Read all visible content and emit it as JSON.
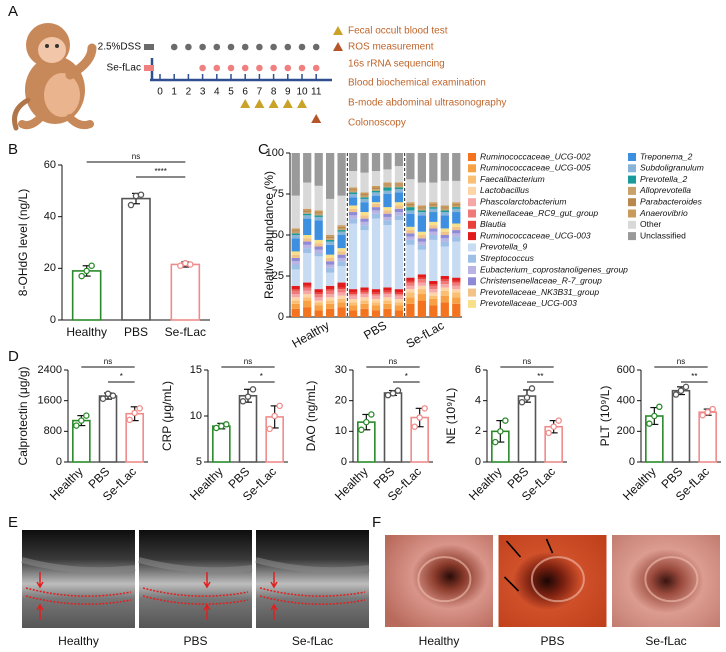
{
  "panel_labels": [
    "A",
    "B",
    "C",
    "D",
    "E",
    "F"
  ],
  "timeline": {
    "days": [
      0,
      1,
      2,
      3,
      4,
      5,
      6,
      7,
      8,
      9,
      10,
      11
    ],
    "groups": [
      {
        "name": "2.5%DSS",
        "color": "#6b6b6b",
        "days": [
          1,
          2,
          3,
          4,
          5,
          6,
          7,
          8,
          9,
          10,
          11
        ]
      },
      {
        "name": "Se-fLac",
        "color": "#f08080",
        "days": [
          3,
          4,
          5,
          6,
          7,
          8,
          9,
          10,
          11
        ]
      }
    ],
    "events": [
      {
        "label": "Fecal occult blood test",
        "color": "#c9a227",
        "days": [
          6,
          7,
          8,
          9,
          10
        ]
      },
      {
        "label": "ROS measurement",
        "color": "#b5562a",
        "days": [
          11
        ]
      },
      {
        "label": "16s rRNA sequencing"
      },
      {
        "label": "Blood biochemical examination"
      },
      {
        "label": "B-mode abdominal ultrasonography"
      },
      {
        "label": "Colonoscopy"
      }
    ]
  },
  "chart_data": [
    {
      "type": "bar",
      "ylabel": "8-OHdG level (ng/L)",
      "categories": [
        "Healthy",
        "PBS",
        "Se-fLac"
      ],
      "values": [
        19,
        47,
        21.5
      ],
      "errors": [
        2,
        2,
        1
      ],
      "points": [
        [
          17,
          19,
          21
        ],
        [
          44.5,
          48,
          48.5
        ],
        [
          21,
          22,
          21.5
        ]
      ],
      "colors": [
        "#2a8a2a",
        "#555555",
        "#f08b8b"
      ],
      "ylim": [
        0,
        60
      ],
      "yticks": [
        0,
        20,
        40,
        60
      ],
      "comparisons": [
        {
          "label": "ns",
          "from": 0,
          "to": 2
        },
        {
          "label": "****",
          "from": 1,
          "to": 2
        }
      ]
    },
    {
      "type": "stacked_bar",
      "ylabel": "Relative abundance (%)",
      "categories": [
        null,
        null,
        "Healthy",
        null,
        null,
        null,
        null,
        "PBS",
        null,
        null,
        null,
        null,
        "Se-fLac",
        null,
        null
      ],
      "ylim": [
        0,
        100
      ],
      "yticks": [
        0,
        25,
        50,
        75,
        100
      ],
      "series": [
        {
          "name": "Ruminococcaceae_UCG-002",
          "color": "#f4731f",
          "values": [
            5,
            6,
            4,
            5,
            6,
            4,
            5,
            4,
            5,
            4,
            8,
            10,
            7,
            9,
            8
          ]
        },
        {
          "name": "Ruminococcaceae_UCG-005",
          "color": "#f7a044",
          "values": [
            3,
            4,
            3,
            3,
            3,
            3,
            3,
            3,
            3,
            3,
            4,
            4,
            4,
            4,
            4
          ]
        },
        {
          "name": "Faecalibacterium",
          "color": "#fbbf74",
          "values": [
            2,
            2,
            2,
            2,
            2,
            2,
            2,
            2,
            2,
            2,
            3,
            3,
            2,
            3,
            3
          ]
        },
        {
          "name": "Lactobacillus",
          "color": "#fdd5a6",
          "values": [
            2,
            2,
            1,
            2,
            2,
            2,
            2,
            2,
            2,
            2,
            2,
            2,
            2,
            2,
            2
          ]
        },
        {
          "name": "Phascolarctobacterium",
          "color": "#f6a8a8",
          "values": [
            2,
            2,
            2,
            2,
            2,
            2,
            2,
            2,
            2,
            2,
            2,
            2,
            2,
            2,
            2
          ]
        },
        {
          "name": "Rikenellaceae_RC9_gut_group",
          "color": "#f07a7a",
          "values": [
            2,
            2,
            2,
            2,
            2,
            1,
            1,
            1,
            1,
            1,
            2,
            2,
            2,
            2,
            2
          ]
        },
        {
          "name": "Blautia",
          "color": "#e8413b",
          "values": [
            1,
            1,
            1,
            1,
            1,
            1,
            1,
            1,
            1,
            1,
            1,
            1,
            1,
            1,
            1
          ]
        },
        {
          "name": "Ruminococcaceae_UCG-003",
          "color": "#e31a1c",
          "values": [
            2,
            2,
            2,
            2,
            3,
            2,
            2,
            2,
            2,
            2,
            2,
            2,
            2,
            2,
            2
          ]
        },
        {
          "name": "Prevotella_9",
          "color": "#c7dcf2",
          "values": [
            10,
            18,
            20,
            8,
            10,
            40,
            35,
            43,
            38,
            42,
            20,
            15,
            25,
            18,
            22
          ]
        },
        {
          "name": "Streptococcus",
          "color": "#9ebfe6",
          "values": [
            3,
            3,
            2,
            3,
            3,
            3,
            3,
            3,
            3,
            3,
            3,
            3,
            3,
            3,
            3
          ]
        },
        {
          "name": "Eubacterium_coprostanoligenes_group",
          "color": "#b9b4e3",
          "values": [
            2,
            2,
            2,
            2,
            2,
            2,
            2,
            2,
            2,
            2,
            2,
            2,
            2,
            2,
            2
          ]
        },
        {
          "name": "Christensenellaceae_R-7_group",
          "color": "#8f8ad6",
          "values": [
            2,
            2,
            2,
            2,
            2,
            2,
            2,
            2,
            2,
            2,
            2,
            2,
            2,
            2,
            2
          ]
        },
        {
          "name": "Prevotellaceae_NK3B31_group",
          "color": "#f2c28b",
          "values": [
            2,
            2,
            2,
            2,
            2,
            2,
            2,
            2,
            2,
            2,
            2,
            2,
            2,
            2,
            2
          ]
        },
        {
          "name": "Prevotellaceae_UCG-003",
          "color": "#f7e08a",
          "values": [
            2,
            2,
            2,
            2,
            2,
            2,
            2,
            1,
            2,
            2,
            2,
            2,
            2,
            2,
            2
          ]
        },
        {
          "name": "Treponema_2",
          "color": "#3d8fe0",
          "values": [
            8,
            10,
            12,
            6,
            8,
            5,
            6,
            4,
            8,
            6,
            8,
            10,
            6,
            8,
            7
          ]
        },
        {
          "name": "Subdoligranulum",
          "color": "#88b4d8",
          "values": [
            2,
            2,
            2,
            2,
            2,
            2,
            2,
            2,
            2,
            2,
            2,
            2,
            2,
            2,
            2
          ]
        },
        {
          "name": "Prevotella_2",
          "color": "#1a9a9a",
          "values": [
            1,
            1,
            1,
            1,
            1,
            1,
            1,
            1,
            2,
            1,
            2,
            1,
            1,
            1,
            1
          ]
        },
        {
          "name": "Alloprevotella",
          "color": "#c8a26a",
          "values": [
            1,
            1,
            1,
            1,
            1,
            1,
            1,
            1,
            1,
            1,
            1,
            1,
            1,
            1,
            1
          ]
        },
        {
          "name": "Parabacteroides",
          "color": "#b8884e",
          "values": [
            1,
            1,
            1,
            1,
            1,
            1,
            1,
            1,
            1,
            1,
            1,
            1,
            1,
            1,
            1
          ]
        },
        {
          "name": "Anaerovibrio",
          "color": "#c99a5c",
          "values": [
            1,
            1,
            1,
            1,
            1,
            1,
            1,
            1,
            1,
            1,
            1,
            1,
            1,
            1,
            1
          ]
        },
        {
          "name": "Other",
          "color": "#d9d9d9",
          "values": [
            20,
            16,
            15,
            22,
            18,
            10,
            12,
            9,
            8,
            10,
            14,
            14,
            12,
            15,
            13
          ]
        },
        {
          "name": "Unclassified",
          "color": "#9a9a9a",
          "values": [
            26,
            18,
            20,
            28,
            26,
            11,
            12,
            11,
            10,
            8,
            16,
            18,
            18,
            17,
            17
          ]
        }
      ]
    },
    {
      "type": "bar",
      "ylabel": "Calprotectin (μg/g)",
      "categories": [
        "Healthy",
        "PBS",
        "Se-fLac"
      ],
      "values": [
        1080,
        1720,
        1260
      ],
      "errors": [
        130,
        80,
        180
      ],
      "points": [
        [
          950,
          1080,
          1210
        ],
        [
          1650,
          1780,
          1730
        ],
        [
          1100,
          1280,
          1400
        ]
      ],
      "colors": [
        "#2a8a2a",
        "#555555",
        "#f08b8b"
      ],
      "ylim": [
        0,
        2400
      ],
      "yticks": [
        0,
        800,
        1600,
        2400
      ],
      "comparisons": [
        {
          "label": "ns",
          "from": 0,
          "to": 2
        },
        {
          "label": "*",
          "from": 1,
          "to": 2
        }
      ]
    },
    {
      "type": "bar",
      "ylabel": "CRP (μg/mL)",
      "categories": [
        "Healthy",
        "PBS",
        "Se-fLac"
      ],
      "values": [
        8.9,
        12.2,
        9.9
      ],
      "errors": [
        0.3,
        0.7,
        1.2
      ],
      "points": [
        [
          8.7,
          8.9,
          9.1
        ],
        [
          11.6,
          12.1,
          12.9
        ],
        [
          8.6,
          10,
          11.1
        ]
      ],
      "colors": [
        "#2a8a2a",
        "#555555",
        "#f08b8b"
      ],
      "ylim": [
        5,
        15
      ],
      "yticks": [
        5,
        10,
        15
      ],
      "comparisons": [
        {
          "label": "ns",
          "from": 0,
          "to": 2
        },
        {
          "label": "*",
          "from": 1,
          "to": 2
        }
      ]
    },
    {
      "type": "bar",
      "ylabel": "DAO (ng/mL)",
      "categories": [
        "Healthy",
        "PBS",
        "Se-fLac"
      ],
      "values": [
        13,
        22.5,
        14.5
      ],
      "errors": [
        2.5,
        0.8,
        3
      ],
      "points": [
        [
          10.5,
          13,
          15.5
        ],
        [
          21.8,
          22.4,
          23.3
        ],
        [
          11.5,
          14.5,
          17.5
        ]
      ],
      "colors": [
        "#2a8a2a",
        "#555555",
        "#f08b8b"
      ],
      "ylim": [
        0,
        30
      ],
      "yticks": [
        0,
        10,
        20,
        30
      ],
      "comparisons": [
        {
          "label": "ns",
          "from": 0,
          "to": 2
        },
        {
          "label": "*",
          "from": 1,
          "to": 2
        }
      ]
    },
    {
      "type": "bar",
      "ylabel": "NE (10⁹/L)",
      "categories": [
        "Healthy",
        "PBS",
        "Se-fLac"
      ],
      "values": [
        2.0,
        4.3,
        2.3
      ],
      "errors": [
        0.7,
        0.4,
        0.4
      ],
      "points": [
        [
          1.3,
          2,
          2.7
        ],
        [
          3.9,
          4.2,
          4.8
        ],
        [
          1.9,
          2.3,
          2.7
        ]
      ],
      "colors": [
        "#2a8a2a",
        "#555555",
        "#f08b8b"
      ],
      "ylim": [
        0,
        6
      ],
      "yticks": [
        0,
        2,
        4,
        6
      ],
      "comparisons": [
        {
          "label": "ns",
          "from": 0,
          "to": 2
        },
        {
          "label": "**",
          "from": 1,
          "to": 2
        }
      ]
    },
    {
      "type": "bar",
      "ylabel": "PLT (10⁹/L)",
      "categories": [
        "Healthy",
        "PBS",
        "Se-fLac"
      ],
      "values": [
        300,
        465,
        325
      ],
      "errors": [
        55,
        25,
        20
      ],
      "points": [
        [
          250,
          300,
          360
        ],
        [
          440,
          465,
          490
        ],
        [
          305,
          325,
          345
        ]
      ],
      "colors": [
        "#2a8a2a",
        "#555555",
        "#f08b8b"
      ],
      "ylim": [
        0,
        600
      ],
      "yticks": [
        0,
        200,
        400,
        600
      ],
      "comparisons": [
        {
          "label": "ns",
          "from": 0,
          "to": 2
        },
        {
          "label": "**",
          "from": 1,
          "to": 2
        }
      ]
    }
  ],
  "ultrasound": [
    {
      "label": "Healthy",
      "color": "#2a8a2a"
    },
    {
      "label": "PBS",
      "color": "#777777"
    },
    {
      "label": "Se-fLac",
      "color": "#f08b8b"
    }
  ],
  "colonoscopy": [
    {
      "label": "Healthy",
      "color": "#2a8a2a"
    },
    {
      "label": "PBS",
      "color": "#777777"
    },
    {
      "label": "Se-fLac",
      "color": "#f08b8b"
    }
  ]
}
